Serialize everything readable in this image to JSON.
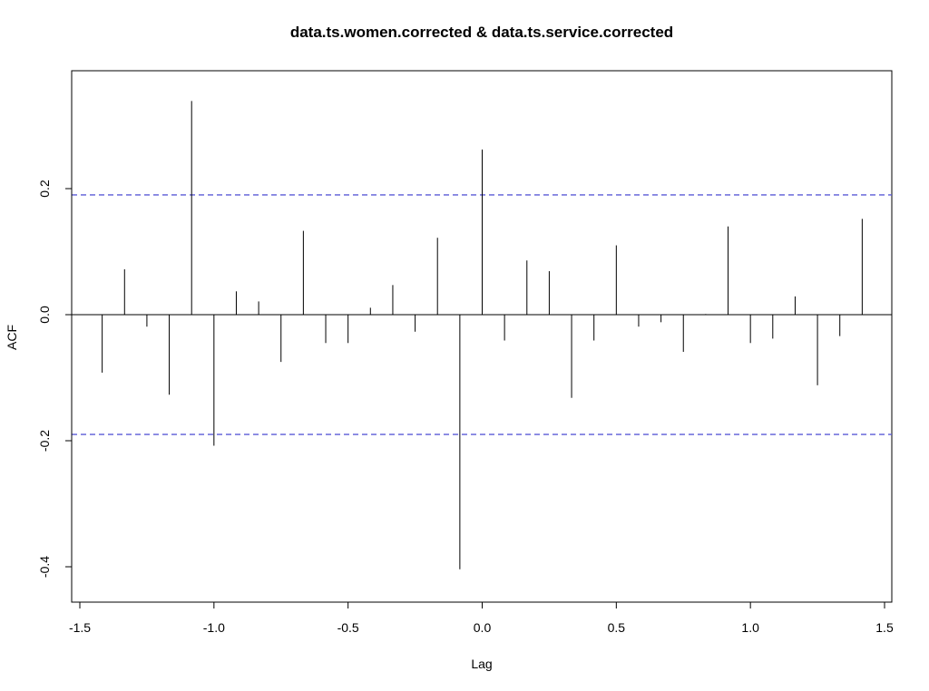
{
  "chart_data": {
    "type": "bar",
    "title": "data.ts.women.corrected & data.ts.service.corrected",
    "xlabel": "Lag",
    "ylabel": "ACF",
    "xlim": [
      -1.5,
      1.5
    ],
    "ylim": [
      -0.43,
      0.37
    ],
    "xticks": [
      -1.5,
      -1.0,
      -0.5,
      0.0,
      0.5,
      1.0,
      1.5
    ],
    "xtick_labels": [
      "-1.5",
      "-1.0",
      "-0.5",
      "0.0",
      "0.5",
      "1.0",
      "1.5"
    ],
    "yticks": [
      -0.4,
      -0.2,
      0.0,
      0.2
    ],
    "ytick_labels": [
      "-0.4",
      "-0.2",
      "0.0",
      "0.2"
    ],
    "confidence_band": 0.19,
    "confidence_color": "#5a5ad6",
    "spike_color": "#000000",
    "lags": [
      -1.4167,
      -1.3333,
      -1.25,
      -1.1667,
      -1.0833,
      -1.0,
      -0.9167,
      -0.8333,
      -0.75,
      -0.6667,
      -0.5833,
      -0.5,
      -0.4167,
      -0.3333,
      -0.25,
      -0.1667,
      -0.0833,
      0.0,
      0.0833,
      0.1667,
      0.25,
      0.3333,
      0.4167,
      0.5,
      0.5833,
      0.6667,
      0.75,
      0.8333,
      0.9167,
      1.0,
      1.0833,
      1.1667,
      1.25,
      1.3333,
      1.4167
    ],
    "acf": [
      -0.092,
      0.072,
      -0.019,
      -0.127,
      0.339,
      -0.208,
      0.037,
      0.021,
      -0.075,
      0.133,
      -0.045,
      -0.045,
      0.011,
      0.047,
      -0.027,
      0.122,
      -0.404,
      0.262,
      -0.041,
      0.086,
      0.069,
      -0.132,
      -0.041,
      0.11,
      -0.019,
      -0.012,
      -0.059,
      0.001,
      0.14,
      -0.045,
      -0.038,
      0.029,
      -0.112,
      -0.034,
      0.152
    ]
  }
}
